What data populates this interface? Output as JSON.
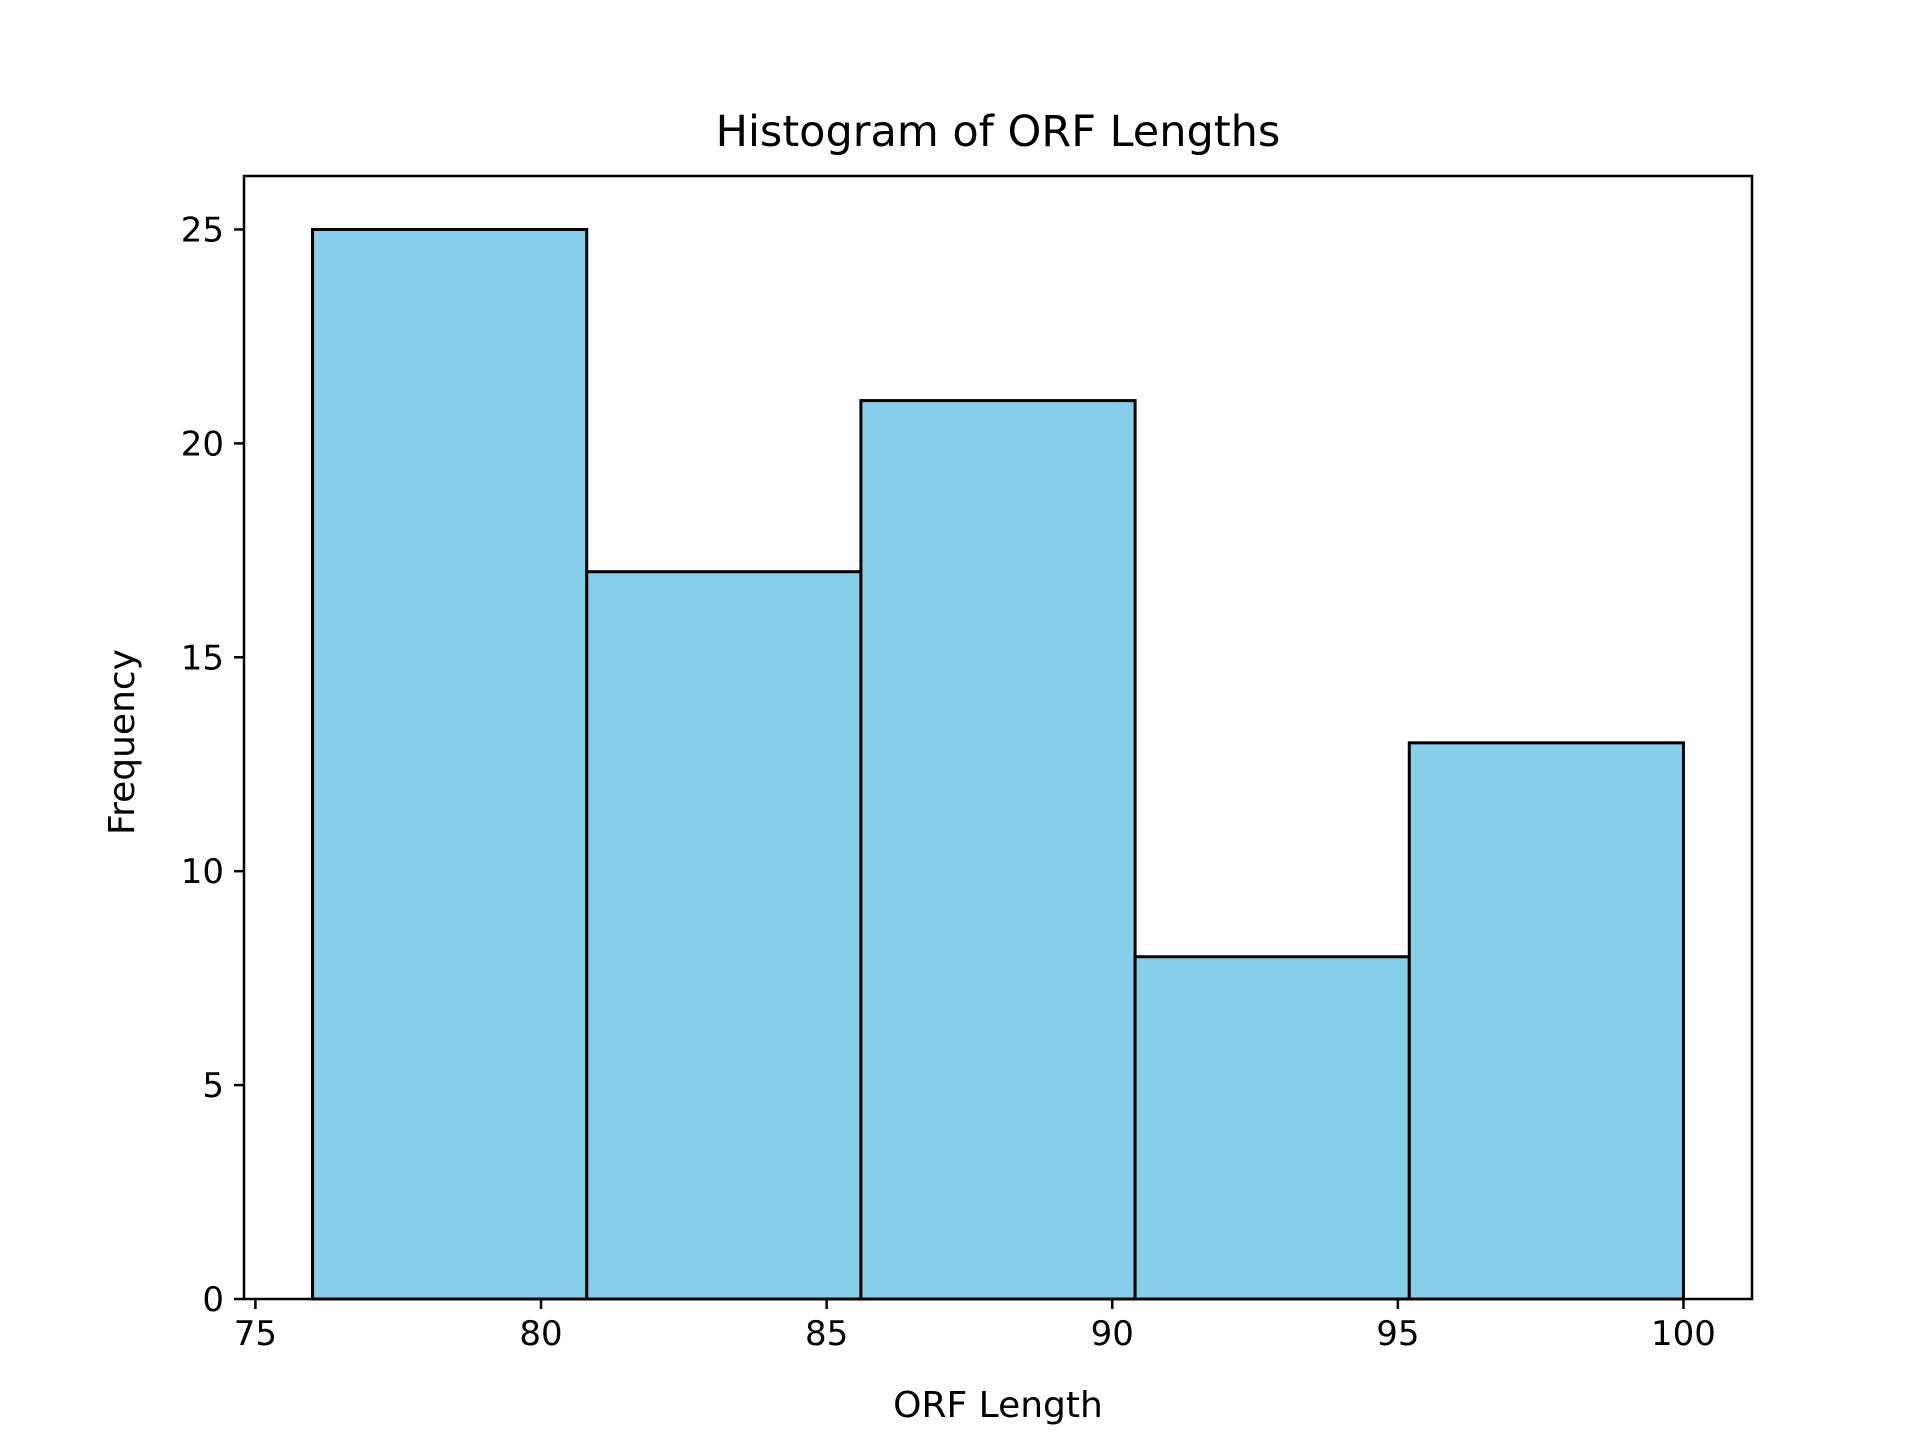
{
  "chart_data": {
    "type": "bar",
    "subtype": "histogram",
    "title": "Histogram of ORF Lengths",
    "xlabel": "ORF Length",
    "ylabel": "Frequency",
    "bins": [
      {
        "start": 76.0,
        "end": 80.8,
        "count": 25
      },
      {
        "start": 80.8,
        "end": 85.6,
        "count": 17
      },
      {
        "start": 85.6,
        "end": 90.4,
        "count": 21
      },
      {
        "start": 90.4,
        "end": 95.2,
        "count": 8
      },
      {
        "start": 95.2,
        "end": 100.0,
        "count": 13
      }
    ],
    "xlim": [
      74.8,
      101.2
    ],
    "ylim": [
      0,
      26.25
    ],
    "xticks": [
      75,
      80,
      85,
      90,
      95,
      100
    ],
    "yticks": [
      0,
      5,
      10,
      15,
      20,
      25
    ],
    "xtick_labels": [
      "75",
      "80",
      "85",
      "90",
      "95",
      "100"
    ],
    "ytick_labels": [
      "0",
      "5",
      "10",
      "15",
      "20",
      "25"
    ],
    "grid": false,
    "bar_color": "#87CEEB",
    "edge_color": "#000000"
  }
}
